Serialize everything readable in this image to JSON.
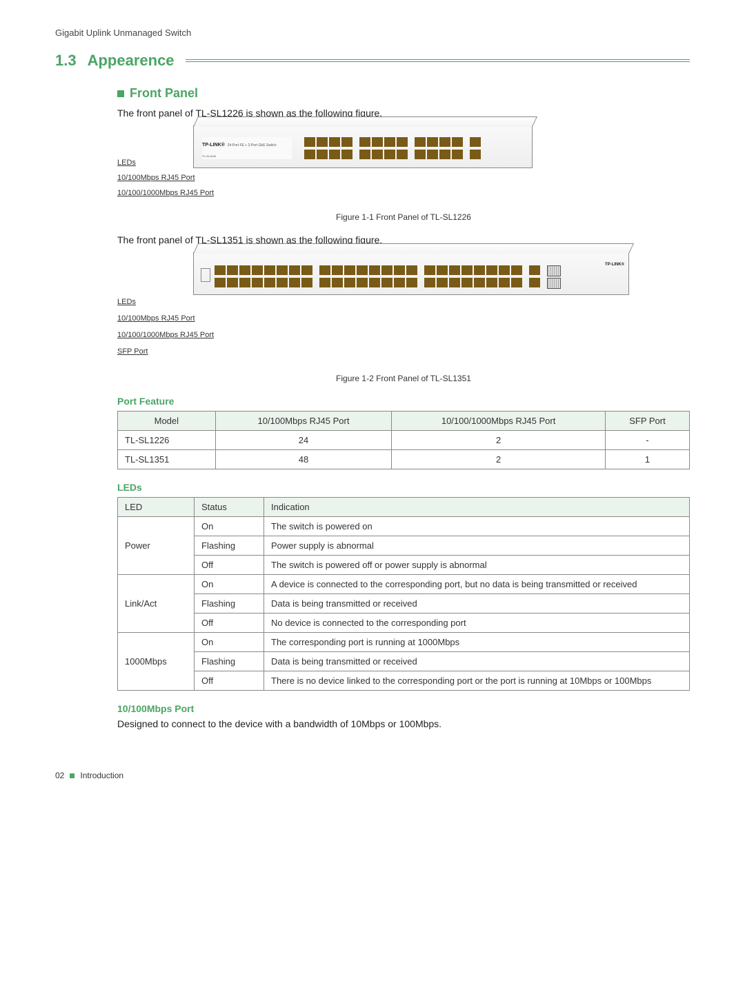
{
  "header": {
    "title": "Gigabit Uplink Unmanaged Switch"
  },
  "section": {
    "num": "1.3",
    "name": "Appearence"
  },
  "front_panel": {
    "heading": "Front Panel",
    "intro1": "The front panel of TL-SL1226 is shown as the following figure.",
    "intro2": "The front panel of TL-SL1351 is shown as the following figure.",
    "fig1_caption": "Figure 1-1    Front Panel of TL-SL1226",
    "fig2_caption": "Figure 1-2    Front Panel of TL-SL1351",
    "label_leds": "LEDs",
    "label_10_100": "10/100Mbps RJ45 Port",
    "label_10_100_1000": "10/100/1000Mbps RJ45 Port",
    "label_sfp": "SFP Port",
    "brand": "TP-LINK®",
    "switch_desc_24": "24-Port FE + 2-Port GbE Switch",
    "switch_desc_24_model": "TL-SL1226"
  },
  "port_feature": {
    "heading": "Port Feature",
    "columns": [
      "Model",
      "10/100Mbps RJ45 Port",
      "10/100/1000Mbps RJ45 Port",
      "SFP Port"
    ],
    "rows": [
      [
        "TL-SL1226",
        "24",
        "2",
        "-"
      ],
      [
        "TL-SL1351",
        "48",
        "2",
        "1"
      ]
    ]
  },
  "leds": {
    "heading": "LEDs",
    "columns": [
      "LED",
      "Status",
      "Indication"
    ],
    "rows": [
      {
        "led": "Power",
        "states": [
          [
            "On",
            "The switch is powered on"
          ],
          [
            "Flashing",
            "Power supply is abnormal"
          ],
          [
            "Off",
            "The switch is powered off or power supply is abnormal"
          ]
        ]
      },
      {
        "led": "Link/Act",
        "states": [
          [
            "On",
            "A device is connected to the corresponding port, but no data is being transmitted or received"
          ],
          [
            "Flashing",
            "Data is being transmitted or received"
          ],
          [
            "Off",
            "No device is connected to the corresponding port"
          ]
        ]
      },
      {
        "led": "1000Mbps",
        "states": [
          [
            "On",
            "The corresponding port is running at 1000Mbps"
          ],
          [
            "Flashing",
            "Data is being transmitted or received"
          ],
          [
            "Off",
            "There is no device linked to the corresponding port or the port  is running at 10Mbps or 100Mbps"
          ]
        ]
      }
    ]
  },
  "port_10_100": {
    "heading": "10/100Mbps Port",
    "text": "Designed to connect to the device with a bandwidth of 10Mbps or 100Mbps."
  },
  "footer": {
    "page": "02",
    "label": "Introduction"
  },
  "colors": {
    "accent": "#4aa564",
    "border": "#888888",
    "port_brown": "#7a5a17"
  }
}
